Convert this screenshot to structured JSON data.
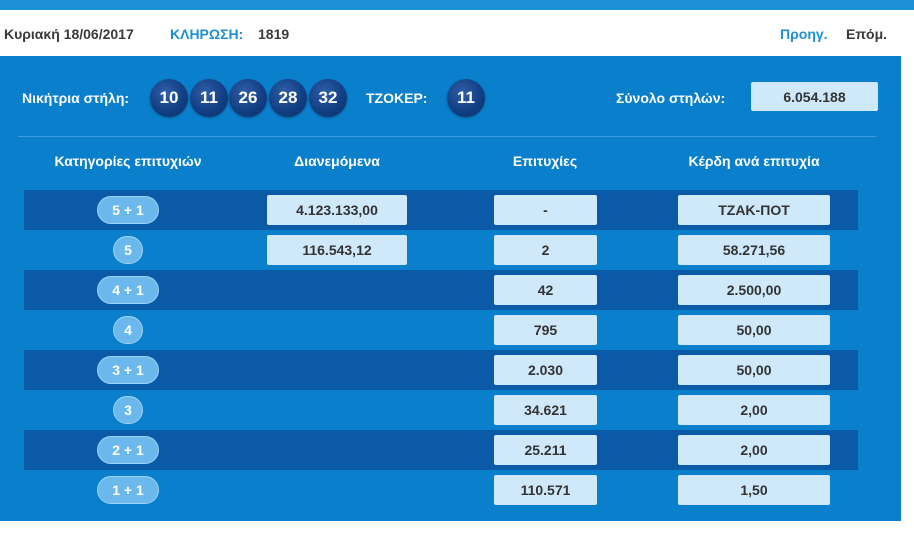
{
  "header": {
    "date": "Κυριακή 18/06/2017",
    "draw_label": "ΚΛΗΡΩΣΗ:",
    "draw_number": "1819",
    "prev": "Προηγ.",
    "next": "Επόμ."
  },
  "winning": {
    "label": "Νικήτρια στήλη:",
    "numbers": [
      "10",
      "11",
      "26",
      "28",
      "32"
    ],
    "joker_label": "ΤΖΟΚΕΡ:",
    "joker": "11",
    "total_label": "Σύνολο στηλών:",
    "total": "6.054.188"
  },
  "table": {
    "headers": [
      "Κατηγορίες επιτυχιών",
      "Διανεμόμενα",
      "Επιτυχίες",
      "Κέρδη ανά επιτυχία"
    ],
    "rows": [
      {
        "category": "5 + 1",
        "distributed": "4.123.133,00",
        "winners": "-",
        "prize": "ΤΖΑΚ-ΠΟΤ"
      },
      {
        "category": "5",
        "distributed": "116.543,12",
        "winners": "2",
        "prize": "58.271,56"
      },
      {
        "category": "4 + 1",
        "distributed": "",
        "winners": "42",
        "prize": "2.500,00"
      },
      {
        "category": "4",
        "distributed": "",
        "winners": "795",
        "prize": "50,00"
      },
      {
        "category": "3 + 1",
        "distributed": "",
        "winners": "2.030",
        "prize": "50,00"
      },
      {
        "category": "3",
        "distributed": "",
        "winners": "34.621",
        "prize": "2,00"
      },
      {
        "category": "2 + 1",
        "distributed": "",
        "winners": "25.211",
        "prize": "2,00"
      },
      {
        "category": "1 + 1",
        "distributed": "",
        "winners": "110.571",
        "prize": "1,50"
      }
    ]
  }
}
